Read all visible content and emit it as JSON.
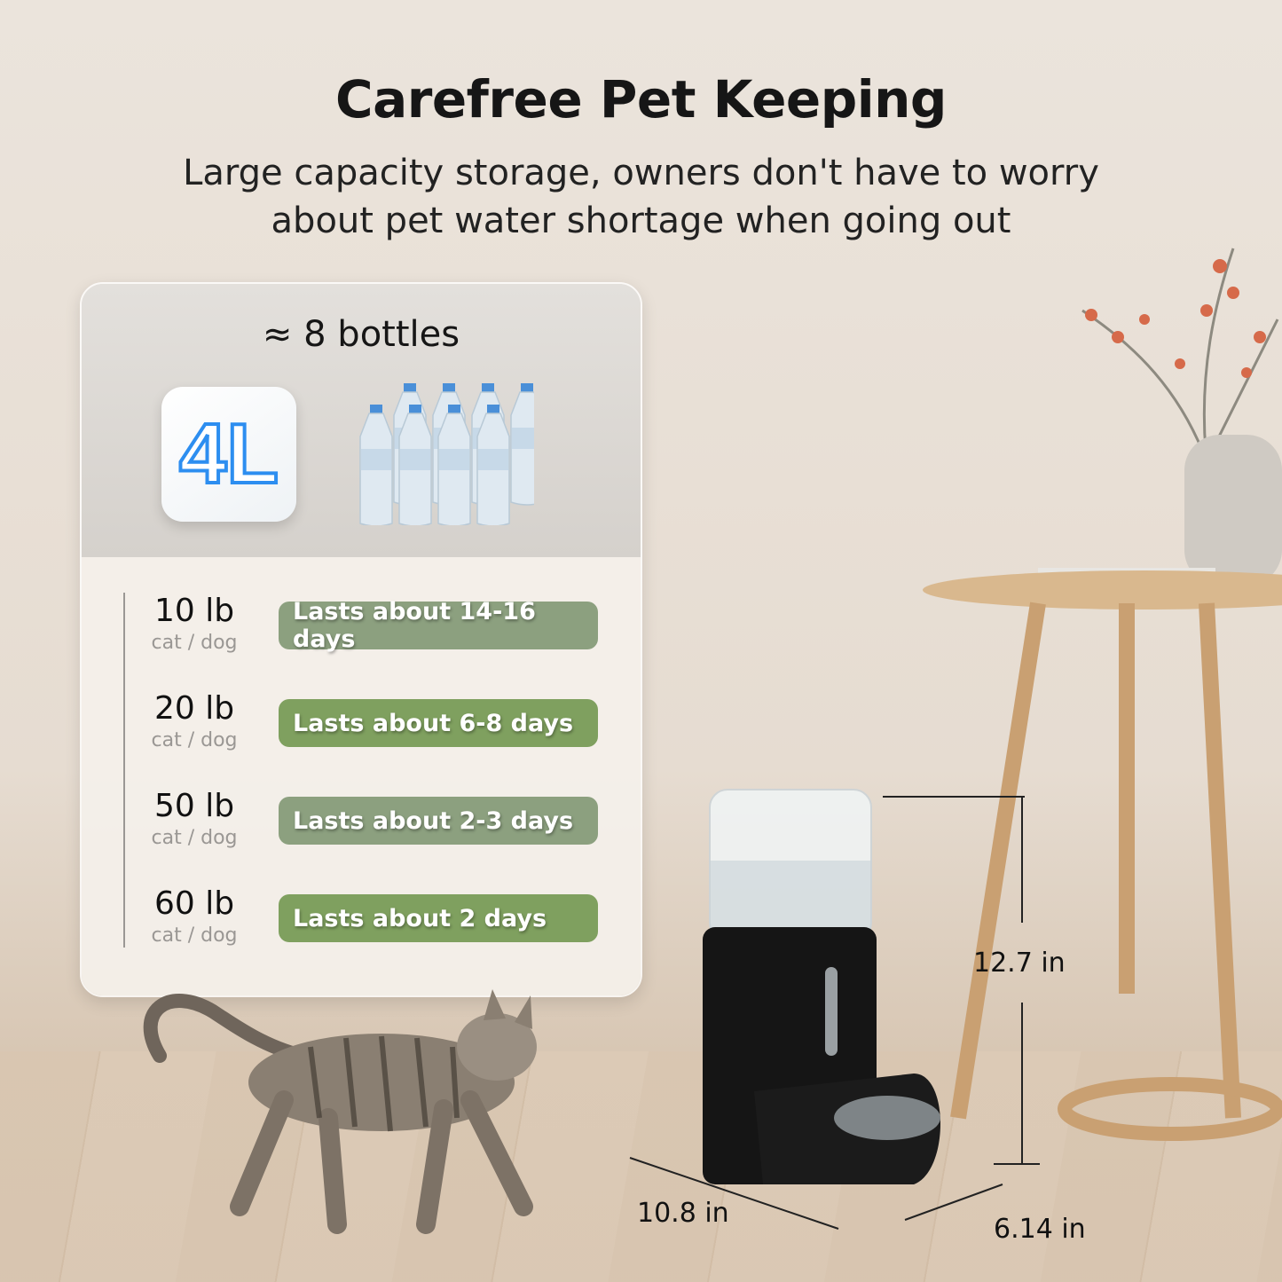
{
  "header": {
    "title": "Carefree Pet Keeping",
    "subtitle_line1": "Large capacity storage, owners don't have to worry",
    "subtitle_line2": "about pet water shortage when going out"
  },
  "capacity": {
    "bottles_label": "≈ 8 bottles",
    "volume": "4L",
    "bottle_count": 8,
    "volume_color": "#2d8ef0"
  },
  "usage": [
    {
      "weight": "10 lb",
      "pet": "cat / dog",
      "duration": "Lasts about 14-16 days",
      "color": "#8ca07f"
    },
    {
      "weight": "20 lb",
      "pet": "cat / dog",
      "duration": "Lasts about 6-8 days",
      "color": "#7fa05f"
    },
    {
      "weight": "50 lb",
      "pet": "cat / dog",
      "duration": "Lasts about 2-3 days",
      "color": "#8ca07f"
    },
    {
      "weight": "60 lb",
      "pet": "cat / dog",
      "duration": "Lasts about  2  days",
      "color": "#7fa05f"
    }
  ],
  "dimensions": {
    "height": "12.7 in",
    "length": "10.8 in",
    "width": "6.14 in"
  }
}
